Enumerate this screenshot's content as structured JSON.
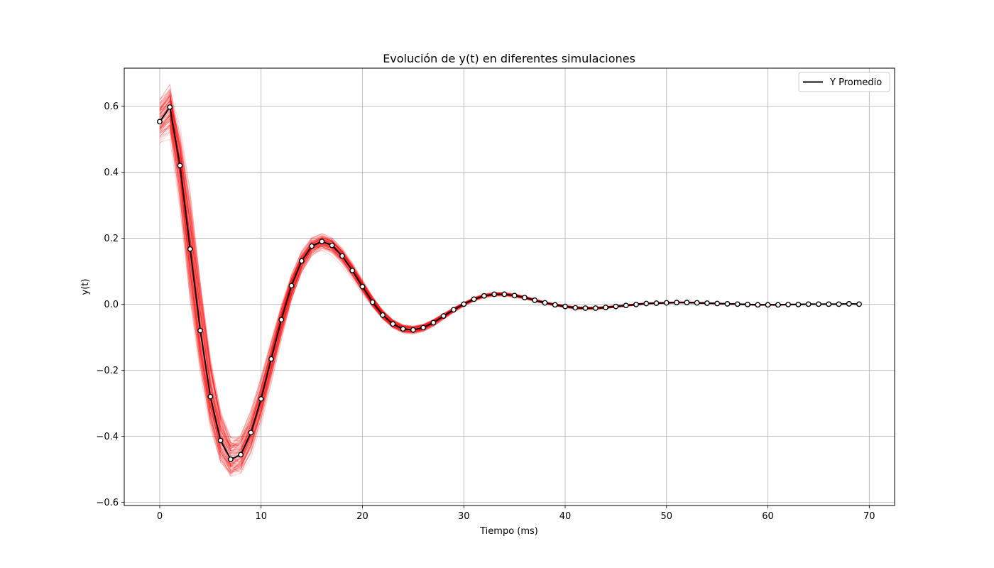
{
  "chart_data": {
    "type": "line",
    "title": "Evolución de y(t) en diferentes simulaciones",
    "xlabel": "Tiempo (ms)",
    "ylabel": "y(t)",
    "xlim": [
      -3.5,
      72.5
    ],
    "ylim": [
      -0.61,
      0.715
    ],
    "xticks": [
      0,
      10,
      20,
      30,
      40,
      50,
      60,
      70
    ],
    "yticks": [
      -0.6,
      -0.4,
      -0.2,
      0.0,
      0.2,
      0.4,
      0.6
    ],
    "xtick_labels": [
      "0",
      "10",
      "20",
      "30",
      "40",
      "50",
      "60",
      "70"
    ],
    "ytick_labels": [
      "−0.6",
      "−0.4",
      "−0.2",
      "0.0",
      "0.2",
      "0.4",
      "0.6"
    ],
    "grid": true,
    "legend": {
      "position": "top-right",
      "entries": [
        {
          "label": "Y Promedio",
          "color": "#000000"
        }
      ]
    },
    "colors": {
      "mean": "#000000",
      "simulations": "#ff0000",
      "marker_fill": "#ffffff"
    },
    "simulations": {
      "count": 100,
      "spread_description_free": true
    },
    "series": [
      {
        "name": "Y Promedio",
        "x": [
          0,
          1,
          2,
          3,
          4,
          5,
          6,
          7,
          8,
          9,
          10,
          11,
          12,
          13,
          14,
          15,
          16,
          17,
          18,
          19,
          20,
          21,
          22,
          23,
          24,
          25,
          26,
          27,
          28,
          29,
          30,
          31,
          32,
          33,
          34,
          35,
          36,
          37,
          38,
          39,
          40,
          41,
          42,
          43,
          44,
          45,
          46,
          47,
          48,
          49,
          50,
          51,
          52,
          53,
          54,
          55,
          56,
          57,
          58,
          59,
          60,
          61,
          62,
          63,
          64,
          65,
          66,
          67,
          68,
          69
        ],
        "values": [
          0.553,
          0.597,
          0.42,
          0.167,
          -0.08,
          -0.28,
          -0.413,
          -0.47,
          -0.456,
          -0.389,
          -0.287,
          -0.166,
          -0.047,
          0.056,
          0.131,
          0.176,
          0.19,
          0.178,
          0.146,
          0.102,
          0.053,
          0.006,
          -0.033,
          -0.06,
          -0.075,
          -0.078,
          -0.071,
          -0.056,
          -0.036,
          -0.017,
          0.0,
          0.015,
          0.025,
          0.03,
          0.03,
          0.026,
          0.02,
          0.012,
          0.004,
          -0.002,
          -0.007,
          -0.011,
          -0.012,
          -0.012,
          -0.01,
          -0.007,
          -0.004,
          -0.001,
          0.002,
          0.003,
          0.004,
          0.005,
          0.005,
          0.004,
          0.003,
          0.002,
          0.001,
          0.0,
          -0.001,
          -0.002,
          -0.002,
          -0.002,
          -0.001,
          -0.001,
          0.0,
          0.0,
          0.0,
          0.0,
          0.001,
          0.0
        ]
      }
    ]
  }
}
